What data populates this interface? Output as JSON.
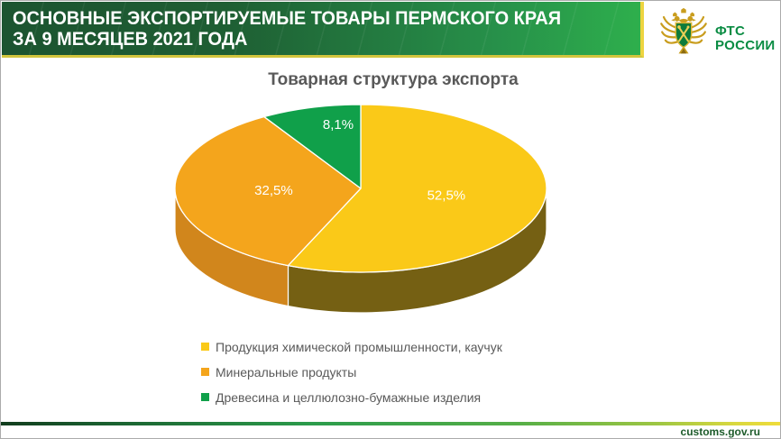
{
  "header": {
    "title_line1": "ОСНОВНЫЕ ЭКСПОРТИРУЕМЫЕ ТОВАРЫ ПЕРМСКОГО КРАЯ",
    "title_line2": "ЗА 9 МЕСЯЦЕВ 2021 ГОДА",
    "logo": {
      "emblem_icon": "fts-customs-emblem",
      "org_name_line1": "ФТС",
      "org_name_line2": "РОССИИ"
    },
    "colors": {
      "gradient_left": "#1C5430",
      "gradient_right": "#2EAF4C",
      "accent_yellow": "#EDD440",
      "logo_text_green": "#0A8C43"
    }
  },
  "chart_data": {
    "type": "pie",
    "three_d": true,
    "title": "Товарная структура экспорта",
    "unit": "%",
    "labels_on_slices": true,
    "legend_position": "bottom-left",
    "slices": [
      {
        "label": "Продукция химической промышленности, каучук",
        "value": 52.5,
        "value_label": "52,5%",
        "color": "#FAC918",
        "side_color": "#756013"
      },
      {
        "label": "Минеральные продукты",
        "value": 32.5,
        "value_label": "32,5%",
        "color": "#F4A51C",
        "side_color": "#D1861C"
      },
      {
        "label": "Древесина и целлюлозно-бумажные изделия",
        "value": 8.1,
        "value_label": "8,1%",
        "color": "#10A04A",
        "side_color": "#0B6E33"
      }
    ]
  },
  "footer": {
    "website": "customs.gov.ru",
    "link_color": "#1D5B2A"
  },
  "text_colors": {
    "chart_title_gray": "#595959",
    "legend_gray": "#595959"
  }
}
